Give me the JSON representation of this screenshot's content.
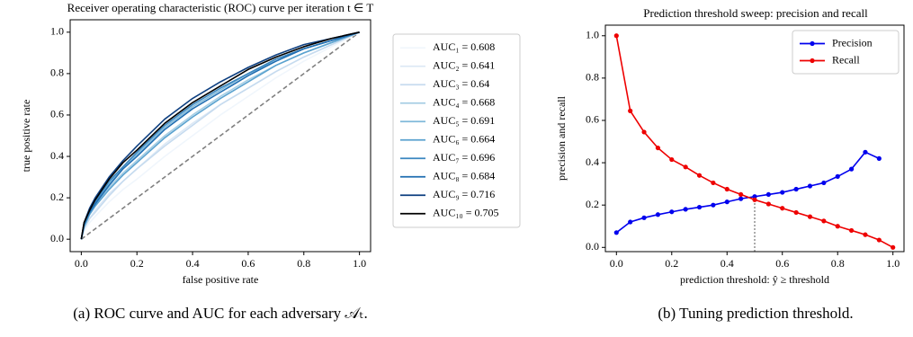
{
  "chart_data": [
    {
      "type": "line",
      "title": "Receiver operating characteristic (ROC) curve per iteration t ∈ T",
      "xlabel": "false positive rate",
      "ylabel": "true positive rate",
      "xlim": [
        -0.04,
        1.04
      ],
      "ylim": [
        -0.06,
        1.06
      ],
      "xticks": [
        {
          "value": 0,
          "label": "0.0"
        },
        0.2,
        0.4,
        0.6,
        0.8,
        {
          "value": 1,
          "label": "1.0"
        }
      ],
      "yticks": [
        {
          "value": 0,
          "label": "0.0"
        },
        0.2,
        0.4,
        0.6,
        0.8,
        {
          "value": 1,
          "label": "1.0"
        }
      ],
      "legend": "outside right",
      "grid": false,
      "markers": false,
      "x": [
        0,
        0.01,
        0.03,
        0.05,
        0.1,
        0.15,
        0.2,
        0.3,
        0.4,
        0.5,
        0.6,
        0.7,
        0.8,
        0.9,
        1.0
      ],
      "series": [
        {
          "name": "AUC₁ = 0.608",
          "color": "#f0f6fc",
          "values": [
            0,
            0.04,
            0.08,
            0.11,
            0.18,
            0.24,
            0.29,
            0.4,
            0.5,
            0.6,
            0.69,
            0.78,
            0.86,
            0.93,
            1
          ]
        },
        {
          "name": "AUC₂ = 0.641",
          "color": "#dde9f5",
          "values": [
            0,
            0.05,
            0.1,
            0.14,
            0.22,
            0.28,
            0.34,
            0.46,
            0.56,
            0.65,
            0.73,
            0.81,
            0.88,
            0.94,
            1
          ]
        },
        {
          "name": "AUC₃ = 0.64",
          "color": "#c6dbef",
          "values": [
            0,
            0.05,
            0.1,
            0.13,
            0.21,
            0.28,
            0.34,
            0.45,
            0.55,
            0.65,
            0.73,
            0.81,
            0.88,
            0.94,
            1
          ]
        },
        {
          "name": "AUC₄ = 0.668",
          "color": "#a6cee4",
          "values": [
            0,
            0.06,
            0.12,
            0.16,
            0.25,
            0.32,
            0.38,
            0.5,
            0.6,
            0.69,
            0.77,
            0.84,
            0.9,
            0.95,
            1
          ]
        },
        {
          "name": "AUC₅ = 0.691",
          "color": "#7fb9da",
          "values": [
            0,
            0.07,
            0.13,
            0.18,
            0.27,
            0.35,
            0.41,
            0.54,
            0.64,
            0.72,
            0.8,
            0.86,
            0.92,
            0.96,
            1
          ]
        },
        {
          "name": "AUC₆ = 0.664",
          "color": "#5aa2cf",
          "values": [
            0,
            0.06,
            0.12,
            0.16,
            0.24,
            0.31,
            0.37,
            0.49,
            0.59,
            0.68,
            0.76,
            0.84,
            0.9,
            0.95,
            1
          ]
        },
        {
          "name": "AUC₇ = 0.696",
          "color": "#3b87c0",
          "values": [
            0,
            0.07,
            0.14,
            0.18,
            0.28,
            0.35,
            0.42,
            0.55,
            0.65,
            0.73,
            0.8,
            0.87,
            0.92,
            0.96,
            1
          ]
        },
        {
          "name": "AUC₈ = 0.684",
          "color": "#1f6db1",
          "values": [
            0,
            0.07,
            0.13,
            0.17,
            0.26,
            0.34,
            0.4,
            0.53,
            0.63,
            0.71,
            0.79,
            0.86,
            0.92,
            0.96,
            1
          ]
        },
        {
          "name": "AUC₉ = 0.716",
          "color": "#0d3f80",
          "values": [
            0,
            0.08,
            0.15,
            0.2,
            0.3,
            0.38,
            0.45,
            0.58,
            0.68,
            0.76,
            0.83,
            0.89,
            0.94,
            0.97,
            1
          ]
        },
        {
          "name": "AUC₁₀ = 0.705",
          "color": "#000000",
          "values": [
            0,
            0.08,
            0.14,
            0.19,
            0.29,
            0.37,
            0.43,
            0.56,
            0.66,
            0.74,
            0.82,
            0.88,
            0.93,
            0.97,
            1
          ]
        }
      ],
      "reference": {
        "x": [
          0,
          1
        ],
        "values": [
          0,
          1
        ],
        "color": "#808080"
      }
    },
    {
      "type": "line",
      "title": "Prediction threshold sweep: precision and recall",
      "xlabel": "prediction threshold: ŷ ≥ threshold",
      "ylabel": "precision and recall",
      "xlim": [
        -0.04,
        1.04
      ],
      "ylim": [
        -0.02,
        1.05
      ],
      "xticks": [
        {
          "value": 0,
          "label": "0.0"
        },
        0.2,
        0.4,
        0.6,
        0.8,
        {
          "value": 1,
          "label": "1.0"
        }
      ],
      "yticks": [
        {
          "value": 0,
          "label": "0.0"
        },
        0.2,
        0.4,
        0.6,
        0.8,
        {
          "value": 1,
          "label": "1.0"
        }
      ],
      "legend": "upper right",
      "grid": false,
      "markers": true,
      "x": [
        0,
        0.05,
        0.1,
        0.15,
        0.2,
        0.25,
        0.3,
        0.35,
        0.4,
        0.45,
        0.5,
        0.55,
        0.6,
        0.65,
        0.7,
        0.75,
        0.8,
        0.85,
        0.9,
        0.95,
        1.0
      ],
      "series": [
        {
          "name": "Precision",
          "color": "#0000ee",
          "values": [
            0.07,
            0.12,
            0.14,
            0.155,
            0.168,
            0.18,
            0.19,
            0.2,
            0.215,
            0.23,
            0.24,
            0.25,
            0.26,
            0.275,
            0.29,
            0.305,
            0.335,
            0.37,
            0.45,
            0.42,
            null
          ]
        },
        {
          "name": "Recall",
          "color": "#ee0000",
          "values": [
            1.0,
            0.645,
            0.545,
            0.47,
            0.415,
            0.38,
            0.34,
            0.305,
            0.275,
            0.25,
            0.225,
            0.205,
            0.185,
            0.165,
            0.145,
            0.125,
            0.1,
            0.08,
            0.06,
            0.035,
            0.0
          ]
        }
      ],
      "threshold_marker": {
        "x": 0.5,
        "y": 0.24,
        "color": "#808080"
      }
    }
  ],
  "captions": [
    "(a) ROC curve and AUC for each adversary 𝒜ₜ.",
    "(b) Tuning prediction threshold."
  ]
}
